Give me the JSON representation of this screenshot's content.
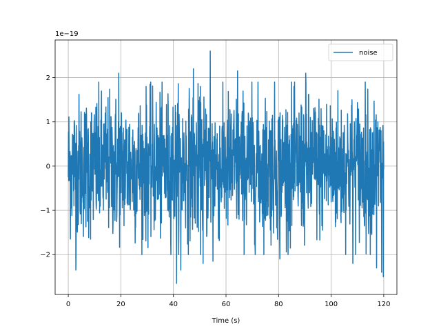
{
  "chart_data": {
    "type": "line",
    "title": "",
    "xlabel": "Time (s)",
    "ylabel": "",
    "offset_label": "1e−19",
    "xlim": [
      -5,
      125
    ],
    "ylim": [
      -2.9,
      2.85
    ],
    "xticks": [
      0,
      20,
      40,
      60,
      80,
      100,
      120
    ],
    "xtick_labels": [
      "0",
      "20",
      "40",
      "60",
      "80",
      "100",
      "120"
    ],
    "yticks": [
      -2,
      -1,
      0,
      1,
      2
    ],
    "ytick_labels": [
      "−2",
      "−1",
      "0",
      "1",
      "2"
    ],
    "grid": true,
    "legend": {
      "placement": "top-right",
      "entries": [
        "noise"
      ]
    },
    "series": [
      {
        "name": "noise",
        "color": "#1f77b4",
        "description_stats": {
          "x_start": 0,
          "x_end": 120,
          "mean": 0.0,
          "std": 0.8,
          "min": -2.65,
          "max": 2.6
        },
        "extremes": [
          {
            "x": 2.9,
            "y": -2.35
          },
          {
            "x": 19.2,
            "y": 2.1
          },
          {
            "x": 41.2,
            "y": -2.65
          },
          {
            "x": 42.8,
            "y": -2.35
          },
          {
            "x": 47.6,
            "y": 2.2
          },
          {
            "x": 51.3,
            "y": -2.2
          },
          {
            "x": 54.0,
            "y": 2.6
          },
          {
            "x": 55.0,
            "y": -2.15
          },
          {
            "x": 64.4,
            "y": 2.15
          },
          {
            "x": 80.5,
            "y": -2.1
          },
          {
            "x": 90.3,
            "y": 2.1
          },
          {
            "x": 108.2,
            "y": -2.2
          },
          {
            "x": 117.3,
            "y": -2.3
          },
          {
            "x": 119.2,
            "y": -2.4
          },
          {
            "x": 119.8,
            "y": -2.5
          }
        ]
      }
    ]
  }
}
